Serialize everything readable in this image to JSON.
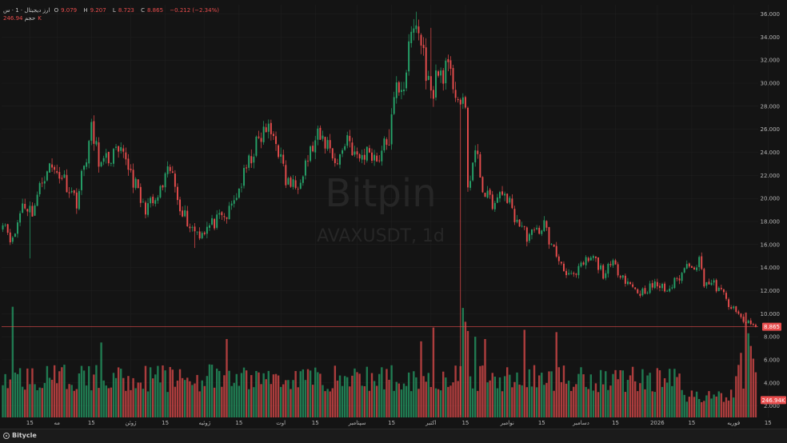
{
  "legend": {
    "symbol": "ارز دیجیتال · 1 · س",
    "open_label": "O",
    "open": "9.079",
    "high_label": "H",
    "high": "9.207",
    "low_label": "L",
    "low": "8.723",
    "close_label": "C",
    "close": "8.865",
    "change": "−0.212 (−2.34%)",
    "volume_label": "حجم",
    "volume": "246.94K"
  },
  "watermark": {
    "brand": "Bitpin",
    "pair": "AVAXUSDT, 1d"
  },
  "footer": {
    "brand": "Bitycle"
  },
  "colors": {
    "up": "#26a269",
    "down": "#e84d4d",
    "background": "#141414",
    "grid": "#1f1f1f",
    "price_line": "#e84d4d"
  },
  "chart_data": {
    "type": "candlestick",
    "title": "AVAXUSDT, 1d",
    "y_axis": {
      "side": "right",
      "range": [
        1.0,
        36.8
      ],
      "ticks": [
        "2.000",
        "4.000",
        "6.000",
        "8.000",
        "10.000",
        "12.000",
        "14.000",
        "16.000",
        "18.000",
        "20.000",
        "22.000",
        "24.000",
        "26.000",
        "28.000",
        "30.000",
        "32.000",
        "34.000",
        "36.000"
      ],
      "tick_values": [
        2,
        4,
        6,
        8,
        10,
        12,
        14,
        16,
        18,
        20,
        22,
        24,
        26,
        28,
        30,
        32,
        34,
        36
      ]
    },
    "x_axis": {
      "ticks": [
        {
          "label": "15",
          "day": 11
        },
        {
          "label": "مه",
          "day": 22
        },
        {
          "label": "15",
          "day": 36
        },
        {
          "label": "ژوئن",
          "day": 52
        },
        {
          "label": "15",
          "day": 66
        },
        {
          "label": "ژوئیه",
          "day": 82
        },
        {
          "label": "15",
          "day": 96
        },
        {
          "label": "اوت",
          "day": 113
        },
        {
          "label": "15",
          "day": 127
        },
        {
          "label": "سپتامبر",
          "day": 144
        },
        {
          "label": "15",
          "day": 158
        },
        {
          "label": "اکتبر",
          "day": 174
        },
        {
          "label": "15",
          "day": 188
        },
        {
          "label": "نوامبر",
          "day": 205
        },
        {
          "label": "15",
          "day": 219
        },
        {
          "label": "دسامبر",
          "day": 235
        },
        {
          "label": "15",
          "day": 249
        },
        {
          "label": "2026",
          "day": 266
        },
        {
          "label": "15",
          "day": 280
        },
        {
          "label": "فوریه",
          "day": 297
        },
        {
          "label": "15",
          "day": 311
        }
      ]
    },
    "last_price": "8.865",
    "last_volume": "246.94K",
    "anchors": [
      [
        0,
        18.3
      ],
      [
        4,
        16.2
      ],
      [
        8,
        19.6
      ],
      [
        12,
        18.9
      ],
      [
        18,
        22.8
      ],
      [
        24,
        22.0
      ],
      [
        30,
        19.8
      ],
      [
        36,
        25.8
      ],
      [
        40,
        22.8
      ],
      [
        45,
        23.8
      ],
      [
        50,
        23.5
      ],
      [
        57,
        19.2
      ],
      [
        62,
        19.6
      ],
      [
        68,
        22.5
      ],
      [
        72,
        19.5
      ],
      [
        76,
        17.6
      ],
      [
        80,
        17.0
      ],
      [
        86,
        17.9
      ],
      [
        91,
        18.4
      ],
      [
        96,
        20.8
      ],
      [
        102,
        24.2
      ],
      [
        107,
        26.0
      ],
      [
        111,
        25.2
      ],
      [
        115,
        21.5
      ],
      [
        119,
        21.0
      ],
      [
        123,
        23.2
      ],
      [
        128,
        25.2
      ],
      [
        132,
        24.8
      ],
      [
        136,
        23.0
      ],
      [
        140,
        25.5
      ],
      [
        144,
        23.3
      ],
      [
        149,
        24.2
      ],
      [
        152,
        23.4
      ],
      [
        157,
        25.2
      ],
      [
        160,
        29.6
      ],
      [
        163,
        30.0
      ],
      [
        166,
        34.0
      ],
      [
        168,
        35.2
      ],
      [
        171,
        32.5
      ],
      [
        174,
        28.8
      ],
      [
        176,
        30.5
      ],
      [
        180,
        31.2
      ],
      [
        183,
        30.0
      ],
      [
        186,
        28.2
      ],
      [
        188,
        27.4
      ],
      [
        189,
        21.0
      ],
      [
        192,
        24.0
      ],
      [
        196,
        20.2
      ],
      [
        200,
        19.5
      ],
      [
        204,
        20.6
      ],
      [
        208,
        18.4
      ],
      [
        213,
        16.8
      ],
      [
        216,
        16.9
      ],
      [
        220,
        17.8
      ],
      [
        223,
        15.8
      ],
      [
        228,
        14.0
      ],
      [
        232,
        13.0
      ],
      [
        236,
        14.4
      ],
      [
        240,
        14.8
      ],
      [
        244,
        13.5
      ],
      [
        248,
        14.2
      ],
      [
        251,
        13.6
      ],
      [
        255,
        12.5
      ],
      [
        259,
        11.8
      ],
      [
        262,
        12.2
      ],
      [
        266,
        12.5
      ],
      [
        270,
        12.0
      ],
      [
        273,
        12.7
      ],
      [
        276,
        13.5
      ],
      [
        279,
        14.5
      ],
      [
        281,
        14.2
      ],
      [
        283,
        14.6
      ],
      [
        285,
        12.8
      ],
      [
        289,
        12.5
      ],
      [
        293,
        11.6
      ],
      [
        296,
        10.5
      ],
      [
        300,
        9.6
      ],
      [
        303,
        9.1
      ],
      [
        306,
        8.865
      ]
    ],
    "spikes": [
      {
        "day": 11,
        "low": 14.8
      },
      {
        "day": 78,
        "low": 15.7
      },
      {
        "day": 168,
        "high": 36.2
      },
      {
        "day": 174,
        "high": 34.8
      },
      {
        "day": 186,
        "low": 1.2
      },
      {
        "day": 183,
        "high": 31.6
      },
      {
        "day": 157,
        "high": 26.0
      }
    ],
    "volume_spikes": [
      {
        "day": 4,
        "v": 9.6
      },
      {
        "day": 40,
        "v": 6.5
      },
      {
        "day": 91,
        "v": 6.8
      },
      {
        "day": 170,
        "v": 6.6
      },
      {
        "day": 175,
        "v": 7.8
      },
      {
        "day": 187,
        "v": 9.5
      },
      {
        "day": 188,
        "v": 8.3
      },
      {
        "day": 189,
        "v": 7.5
      },
      {
        "day": 192,
        "v": 7.0
      },
      {
        "day": 196,
        "v": 6.8
      },
      {
        "day": 212,
        "v": 7.6
      },
      {
        "day": 225,
        "v": 7.4
      },
      {
        "day": 300,
        "v": 5.6
      },
      {
        "day": 302,
        "v": 9.1
      },
      {
        "day": 303,
        "v": 7.3
      },
      {
        "day": 304,
        "v": 6.2
      },
      {
        "day": 305,
        "v": 5.1
      }
    ]
  }
}
